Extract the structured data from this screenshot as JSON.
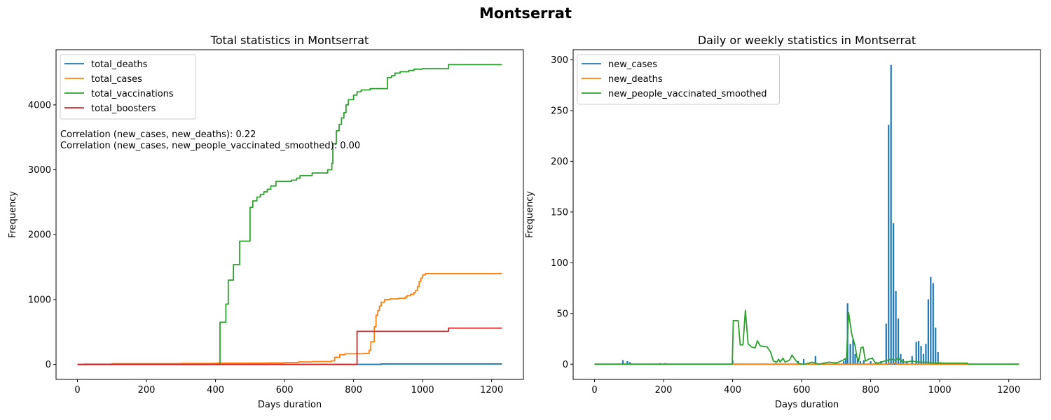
{
  "suptitle": "Montserrat",
  "chart_data": [
    {
      "type": "line",
      "title": "Total statistics in Montserrat",
      "xlabel": "Days duration",
      "ylabel": "Frequency",
      "xlim": [
        -62,
        1292
      ],
      "ylim": [
        -230,
        4850
      ],
      "xticks": [
        0,
        200,
        400,
        600,
        800,
        1000,
        1200
      ],
      "yticks": [
        0,
        1000,
        2000,
        3000,
        4000
      ],
      "legend_position": "upper-left",
      "annotations": [
        "Correlation (new_cases, new_deaths): 0.22",
        "Correlation (new_cases, new_people_vaccinated_smoothed): 0.00"
      ],
      "series": [
        {
          "name": "total_deaths",
          "color": "#1f77b4",
          "step": true,
          "points": [
            [
              0,
              0
            ],
            [
              30,
              1
            ],
            [
              100,
              1
            ],
            [
              700,
              1
            ],
            [
              820,
              1
            ],
            [
              880,
              8
            ],
            [
              1230,
              8
            ]
          ]
        },
        {
          "name": "total_cases",
          "color": "#ff7f0e",
          "step": true,
          "points": [
            [
              0,
              0
            ],
            [
              20,
              5
            ],
            [
              100,
              13
            ],
            [
              300,
              17
            ],
            [
              400,
              20
            ],
            [
              500,
              22
            ],
            [
              550,
              24
            ],
            [
              600,
              30
            ],
            [
              640,
              40
            ],
            [
              680,
              45
            ],
            [
              735,
              55
            ],
            [
              745,
              110
            ],
            [
              760,
              150
            ],
            [
              775,
              165
            ],
            [
              830,
              170
            ],
            [
              845,
              220
            ],
            [
              850,
              350
            ],
            [
              860,
              580
            ],
            [
              865,
              760
            ],
            [
              870,
              830
            ],
            [
              875,
              900
            ],
            [
              880,
              960
            ],
            [
              890,
              1000
            ],
            [
              905,
              1010
            ],
            [
              930,
              1020
            ],
            [
              950,
              1040
            ],
            [
              955,
              1060
            ],
            [
              965,
              1080
            ],
            [
              975,
              1110
            ],
            [
              980,
              1140
            ],
            [
              985,
              1200
            ],
            [
              990,
              1280
            ],
            [
              995,
              1330
            ],
            [
              1000,
              1380
            ],
            [
              1008,
              1400
            ],
            [
              1230,
              1400
            ]
          ]
        },
        {
          "name": "total_vaccinations",
          "color": "#2ca02c",
          "step": true,
          "points": [
            [
              0,
              0
            ],
            [
              411,
              10
            ],
            [
              413,
              650
            ],
            [
              430,
              930
            ],
            [
              437,
              1300
            ],
            [
              452,
              1540
            ],
            [
              470,
              1900
            ],
            [
              500,
              2420
            ],
            [
              508,
              2520
            ],
            [
              520,
              2580
            ],
            [
              530,
              2620
            ],
            [
              540,
              2660
            ],
            [
              550,
              2700
            ],
            [
              560,
              2750
            ],
            [
              575,
              2820
            ],
            [
              620,
              2840
            ],
            [
              635,
              2870
            ],
            [
              645,
              2910
            ],
            [
              680,
              2950
            ],
            [
              725,
              3000
            ],
            [
              737,
              3100
            ],
            [
              740,
              3400
            ],
            [
              750,
              3600
            ],
            [
              758,
              3700
            ],
            [
              765,
              3800
            ],
            [
              772,
              3880
            ],
            [
              778,
              4000
            ],
            [
              785,
              4080
            ],
            [
              800,
              4150
            ],
            [
              810,
              4200
            ],
            [
              822,
              4230
            ],
            [
              848,
              4250
            ],
            [
              898,
              4420
            ],
            [
              910,
              4450
            ],
            [
              920,
              4490
            ],
            [
              935,
              4510
            ],
            [
              960,
              4530
            ],
            [
              975,
              4550
            ],
            [
              1000,
              4560
            ],
            [
              1075,
              4620
            ],
            [
              1230,
              4620
            ]
          ]
        },
        {
          "name": "total_boosters",
          "color": "#d62728",
          "step": true,
          "points": [
            [
              0,
              0
            ],
            [
              808,
              0
            ],
            [
              810,
              510
            ],
            [
              1075,
              560
            ],
            [
              1230,
              560
            ]
          ]
        }
      ]
    },
    {
      "type": "line",
      "title": "Daily or weekly statistics in Montserrat",
      "xlabel": "Days duration",
      "ylabel": "Frequency",
      "xlim": [
        -62,
        1292
      ],
      "ylim": [
        -15,
        310
      ],
      "xticks": [
        0,
        200,
        400,
        600,
        800,
        1000,
        1200
      ],
      "yticks": [
        0,
        50,
        100,
        150,
        200,
        250,
        300
      ],
      "legend_position": "upper-left",
      "series": [
        {
          "name": "new_cases",
          "color": "#1f77b4",
          "kind": "spikes",
          "points": [
            [
              82,
              4
            ],
            [
              95,
              3
            ],
            [
              102,
              2
            ],
            [
              190,
              1
            ],
            [
              205,
              1
            ],
            [
              400,
              4
            ],
            [
              525,
              1
            ],
            [
              590,
              3
            ],
            [
              606,
              5
            ],
            [
              640,
              8
            ],
            [
              698,
              2
            ],
            [
              722,
              3
            ],
            [
              728,
              5
            ],
            [
              733,
              60
            ],
            [
              741,
              20
            ],
            [
              749,
              25
            ],
            [
              755,
              10
            ],
            [
              762,
              5
            ],
            [
              770,
              3
            ],
            [
              780,
              4
            ],
            [
              800,
              3
            ],
            [
              815,
              2
            ],
            [
              830,
              3
            ],
            [
              845,
              40
            ],
            [
              852,
              236
            ],
            [
              859,
              295
            ],
            [
              866,
              139
            ],
            [
              873,
              72
            ],
            [
              880,
              45
            ],
            [
              887,
              10
            ],
            [
              894,
              5
            ],
            [
              905,
              3
            ],
            [
              920,
              8
            ],
            [
              932,
              22
            ],
            [
              939,
              23
            ],
            [
              946,
              18
            ],
            [
              953,
              10
            ],
            [
              960,
              20
            ],
            [
              967,
              64
            ],
            [
              974,
              86
            ],
            [
              981,
              80
            ],
            [
              988,
              36
            ],
            [
              995,
              12
            ],
            [
              1002,
              2
            ],
            [
              1008,
              1
            ]
          ]
        },
        {
          "name": "new_deaths",
          "color": "#ff7f0e",
          "kind": "line",
          "points": [
            [
              0,
              0
            ],
            [
              850,
              0
            ],
            [
              852,
              1
            ],
            [
              858,
              0
            ],
            [
              870,
              1
            ],
            [
              875,
              0
            ],
            [
              1000,
              0
            ],
            [
              1230,
              0
            ]
          ]
        },
        {
          "name": "new_people_vaccinated_smoothed",
          "color": "#2ca02c",
          "kind": "line",
          "points": [
            [
              0,
              0
            ],
            [
              399,
              0
            ],
            [
              402,
              43
            ],
            [
              416,
              43
            ],
            [
              422,
              19
            ],
            [
              430,
              19
            ],
            [
              437,
              53
            ],
            [
              445,
              20
            ],
            [
              455,
              17
            ],
            [
              465,
              16
            ],
            [
              472,
              23
            ],
            [
              480,
              18
            ],
            [
              500,
              17
            ],
            [
              510,
              12
            ],
            [
              518,
              3
            ],
            [
              528,
              2
            ],
            [
              533,
              5
            ],
            [
              538,
              2
            ],
            [
              546,
              6
            ],
            [
              552,
              2
            ],
            [
              565,
              4
            ],
            [
              572,
              9
            ],
            [
              580,
              5
            ],
            [
              590,
              1
            ],
            [
              600,
              0
            ],
            [
              610,
              0
            ],
            [
              620,
              1
            ],
            [
              630,
              2
            ],
            [
              640,
              1
            ],
            [
              650,
              0
            ],
            [
              680,
              2
            ],
            [
              700,
              1
            ],
            [
              720,
              4
            ],
            [
              730,
              6
            ],
            [
              736,
              51
            ],
            [
              745,
              30
            ],
            [
              755,
              18
            ],
            [
              760,
              7
            ],
            [
              765,
              3
            ],
            [
              772,
              16
            ],
            [
              778,
              17
            ],
            [
              785,
              3
            ],
            [
              795,
              5
            ],
            [
              805,
              6
            ],
            [
              812,
              2
            ],
            [
              820,
              1
            ],
            [
              830,
              2
            ],
            [
              840,
              3
            ],
            [
              850,
              4
            ],
            [
              860,
              5
            ],
            [
              870,
              4
            ],
            [
              880,
              6
            ],
            [
              890,
              3
            ],
            [
              900,
              2
            ],
            [
              920,
              3
            ],
            [
              940,
              2
            ],
            [
              960,
              2
            ],
            [
              980,
              1
            ],
            [
              1000,
              1
            ],
            [
              1050,
              1
            ],
            [
              1080,
              1
            ],
            [
              1082,
              0
            ],
            [
              1230,
              0
            ]
          ]
        }
      ]
    }
  ]
}
